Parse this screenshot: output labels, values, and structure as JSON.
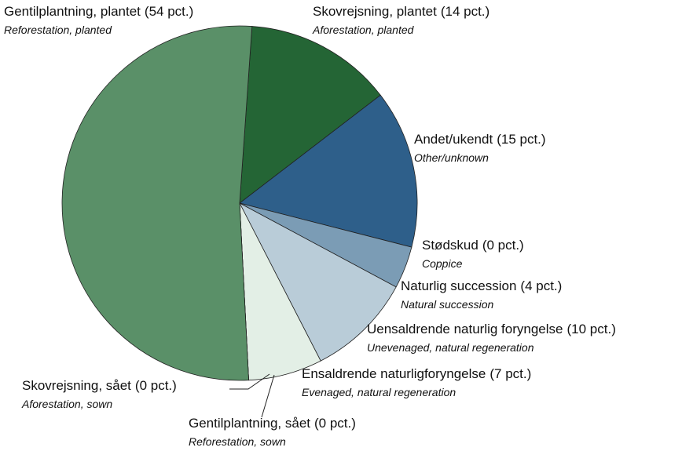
{
  "chart_data": {
    "type": "pie",
    "categories": [
      "Skovrejsning, plantet",
      "Andet/ukendt",
      "Stødskud",
      "Naturlig succession",
      "Uensaldrende naturlig foryngelse",
      "Ensaldrende naturligforyngelse",
      "Gentilplantning, sået",
      "Skovrejsning, sået",
      "Gentilplantning, plantet"
    ],
    "subcategories": [
      "Aforestation, planted",
      "Other/unknown",
      "Coppice",
      "Natural succession",
      "Unevenaged, natural regeneration",
      "Evenaged, natural regeneration",
      "Reforestation, sown",
      "Aforestation, sown",
      "Reforestation, planted"
    ],
    "values": [
      14,
      15,
      0,
      4,
      10,
      7,
      0,
      0,
      54
    ],
    "value_labels": [
      "(14 pct.)",
      "(15 pct.)",
      "(0 pct.)",
      "(4 pct.)",
      "(10 pct.)",
      "(7 pct.)",
      "(0 pct.)",
      "(0 pct.)",
      "(54 pct.)"
    ],
    "colors": [
      "#246535",
      "#2e5f8a",
      "#4f7597",
      "#7b9cb5",
      "#b9ccd8",
      "#e3efe6",
      "#9fbfa8",
      "#4e8a5f",
      "#5a9068"
    ]
  }
}
